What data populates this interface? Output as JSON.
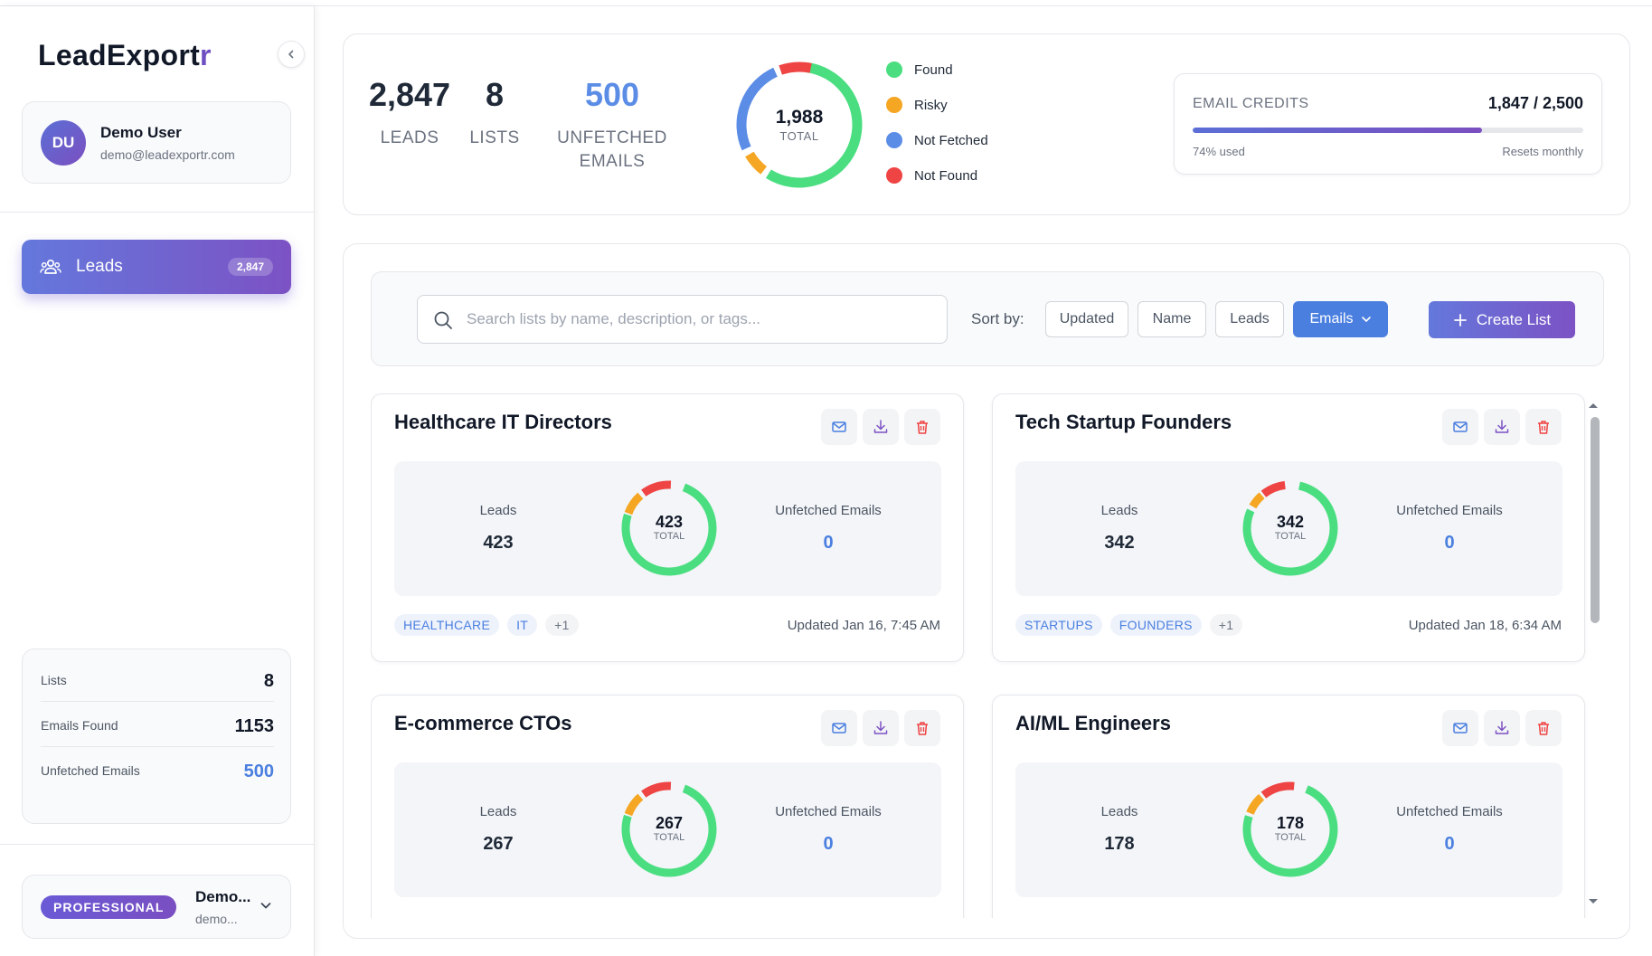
{
  "app": {
    "logo_main": "LeadExport",
    "logo_accent": "r"
  },
  "user": {
    "initials": "DU",
    "name": "Demo User",
    "email": "demo@leadexportr.com"
  },
  "nav": {
    "leads_label": "Leads",
    "leads_count": "2,847"
  },
  "sidebar_stats": [
    {
      "label": "Lists",
      "value": "8"
    },
    {
      "label": "Emails Found",
      "value": "1153"
    },
    {
      "label": "Unfetched Emails",
      "value": "500"
    }
  ],
  "plan": {
    "badge": "PROFESSIONAL",
    "name": "Demo...",
    "email": "demo..."
  },
  "summary": {
    "leads": {
      "value": "2,847",
      "label": "LEADS"
    },
    "lists": {
      "value": "8",
      "label": "LISTS"
    },
    "unfetched": {
      "value": "500",
      "label_line1": "UNFETCHED",
      "label_line2": "EMAILS"
    },
    "donut": {
      "total": "1,988",
      "total_label": "TOTAL"
    },
    "legend": [
      {
        "label": "Found",
        "color": "#4ade80"
      },
      {
        "label": "Risky",
        "color": "#f5a623"
      },
      {
        "label": "Not Fetched",
        "color": "#5b8de6"
      },
      {
        "label": "Not Found",
        "color": "#ef4444"
      }
    ]
  },
  "credits": {
    "title": "EMAIL CREDITS",
    "value": "1,847 / 2,500",
    "used_fraction": 0.74,
    "used_label": "74% used",
    "reset_label": "Resets monthly"
  },
  "toolbar": {
    "search_placeholder": "Search lists by name, description, or tags...",
    "sort_label": "Sort by:",
    "sort_options": [
      "Updated",
      "Name",
      "Leads",
      "Emails"
    ],
    "sort_active": "Emails",
    "create_label": "Create List"
  },
  "cards": [
    {
      "title": "Healthcare IT Directors",
      "leads_label": "Leads",
      "leads": "423",
      "total": "423",
      "total_label": "TOTAL",
      "unfetched_label": "Unfetched Emails",
      "unfetched": "0",
      "tags": [
        "HEALTHCARE",
        "IT",
        "+1"
      ],
      "updated": "Updated Jan 16, 7:45 AM"
    },
    {
      "title": "Tech Startup Founders",
      "leads_label": "Leads",
      "leads": "342",
      "total": "342",
      "total_label": "TOTAL",
      "unfetched_label": "Unfetched Emails",
      "unfetched": "0",
      "tags": [
        "STARTUPS",
        "FOUNDERS",
        "+1"
      ],
      "updated": "Updated Jan 18, 6:34 AM"
    },
    {
      "title": "E-commerce CTOs",
      "leads_label": "Leads",
      "leads": "267",
      "total": "267",
      "total_label": "TOTAL",
      "unfetched_label": "Unfetched Emails",
      "unfetched": "0"
    },
    {
      "title": "AI/ML Engineers",
      "leads_label": "Leads",
      "leads": "178",
      "total": "178",
      "total_label": "TOTAL",
      "unfetched_label": "Unfetched Emails",
      "unfetched": "0"
    }
  ],
  "colors": {
    "found": "#4ade80",
    "risky": "#f5a623",
    "not_fetched": "#5b8de6",
    "not_found": "#ef4444",
    "primary": "#4a7fe0"
  }
}
